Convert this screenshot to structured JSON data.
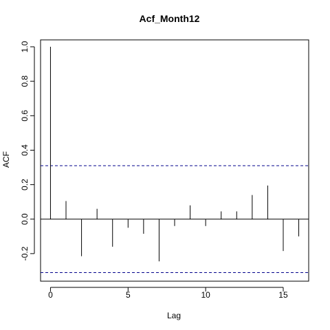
{
  "chart_data": {
    "type": "bar",
    "title": "Acf_Month12",
    "xlabel": "Lag",
    "ylabel": "ACF",
    "xlim": [
      -0.64,
      16.64
    ],
    "ylim": [
      -0.36,
      1.04
    ],
    "x_ticks": [
      0,
      5,
      10,
      15
    ],
    "y_ticks": [
      -0.2,
      0.0,
      0.2,
      0.4,
      0.6,
      0.8,
      1.0
    ],
    "x_tick_labels": [
      "0",
      "5",
      "10",
      "15"
    ],
    "y_tick_labels": [
      "-0.2",
      "0.0",
      "0.2",
      "0.4",
      "0.6",
      "0.8",
      "1.0"
    ],
    "confidence_bounds": [
      0.31,
      -0.31
    ],
    "bound_color": "#00008b",
    "lags": [
      0,
      1,
      2,
      3,
      4,
      5,
      6,
      7,
      8,
      9,
      10,
      11,
      12,
      13,
      14,
      15,
      16
    ],
    "values": [
      1.0,
      0.105,
      -0.215,
      0.06,
      -0.16,
      -0.05,
      -0.085,
      -0.245,
      -0.04,
      0.08,
      -0.04,
      0.045,
      0.045,
      0.14,
      0.195,
      -0.185,
      -0.1
    ],
    "grid": false,
    "legend": "none"
  }
}
